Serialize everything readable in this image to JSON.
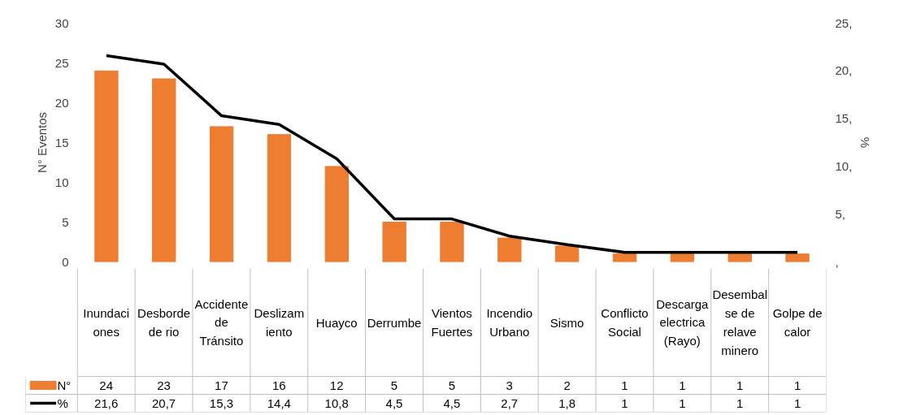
{
  "chart_data": {
    "type": "bar",
    "categories": [
      "Inundaciones",
      "Desborde de rio",
      "Accidente de Tránsito",
      "Deslizamiento",
      "Huayco",
      "Derrumbe",
      "Vientos Fuertes",
      "Incendio Urbano",
      "Sismo",
      "Conflicto Social",
      "Descarga electrica (Rayo)",
      "Desembalse de relave minero",
      "Golpe de calor"
    ],
    "series": [
      {
        "name": "N°",
        "color": "#ed7d31",
        "values": [
          24,
          23,
          17,
          16,
          12,
          5,
          5,
          3,
          2,
          1,
          1,
          1,
          1
        ],
        "value_labels": [
          "24",
          "23",
          "17",
          "16",
          "12",
          "5",
          "5",
          "3",
          "2",
          "1",
          "1",
          "1",
          "1"
        ]
      },
      {
        "name": "%",
        "type": "line",
        "axis": "y2",
        "color": "#000000",
        "values": [
          21.6,
          20.7,
          15.3,
          14.4,
          10.8,
          4.5,
          4.5,
          2.7,
          1.8,
          1,
          1,
          1,
          1
        ],
        "value_labels": [
          "21,6",
          "20,7",
          "15,3",
          "14,4",
          "10,8",
          "4,5",
          "4,5",
          "2,7",
          "1,8",
          "1",
          "1",
          "1",
          "1"
        ]
      }
    ],
    "ylabel": "N° Eventos",
    "y2label": "%",
    "ylim": [
      0,
      30
    ],
    "yticks": [
      0,
      5,
      10,
      15,
      20,
      25,
      30
    ],
    "y2lim": [
      0,
      25
    ],
    "y2ticks": [
      {
        "value": 0,
        "label": ","
      },
      {
        "value": 5,
        "label": "5,"
      },
      {
        "value": 10,
        "label": "10,"
      },
      {
        "value": 15,
        "label": "15,"
      },
      {
        "value": 20,
        "label": "20,"
      },
      {
        "value": 25,
        "label": "25,"
      }
    ],
    "legend": "bottom left",
    "marker": "none",
    "line_style": "solid"
  }
}
